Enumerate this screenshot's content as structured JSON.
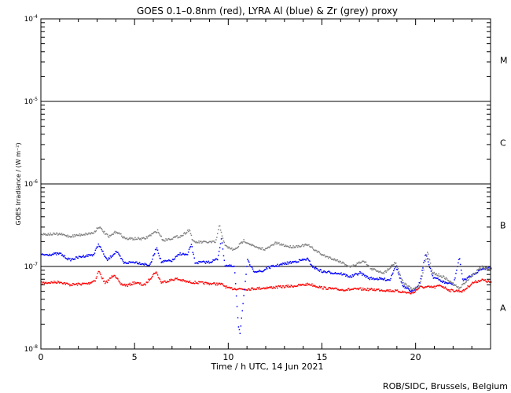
{
  "chart_data": {
    "type": "scatter",
    "title": "GOES 0.1–0.8nm (red), LYRA Al (blue) & Zr (grey) proxy",
    "xlabel": "Time / h UTC, 14 Jun 2021",
    "ylabel": "GOES Irradiance / (W m⁻²)",
    "xlim": [
      0,
      24
    ],
    "ylim": [
      1e-08,
      0.0001
    ],
    "yscale": "log",
    "x_ticks": [
      0,
      5,
      10,
      15,
      20
    ],
    "x_tick_labels": [
      "0",
      "5",
      "10",
      "15",
      "20"
    ],
    "y_tick_labels": [
      {
        "base": "10",
        "exp": "-8"
      },
      {
        "base": "10",
        "exp": "-7"
      },
      {
        "base": "10",
        "exp": "-6"
      },
      {
        "base": "10",
        "exp": "-5"
      },
      {
        "base": "10",
        "exp": "-4"
      }
    ],
    "flare_classes": [
      {
        "label": "A",
        "range": [
          1e-08,
          1e-07
        ]
      },
      {
        "label": "B",
        "range": [
          1e-07,
          1e-06
        ]
      },
      {
        "label": "C",
        "range": [
          1e-06,
          1e-05
        ]
      },
      {
        "label": "M",
        "range": [
          1e-05,
          0.0001
        ]
      }
    ],
    "threshold_lines": [
      1e-07,
      1e-06,
      1e-05
    ],
    "series": [
      {
        "name": "GOES 0.1-0.8nm",
        "color": "#ff0000",
        "points": [
          [
            0,
            6.4e-08
          ],
          [
            1,
            6.6e-08
          ],
          [
            1.5,
            6.1e-08
          ],
          [
            2.5,
            6.3e-08
          ],
          [
            2.9,
            7e-08
          ],
          [
            3.05,
            9e-08
          ],
          [
            3.4,
            6.3e-08
          ],
          [
            3.9,
            8.2e-08
          ],
          [
            4.2,
            6.2e-08
          ],
          [
            4.6,
            6e-08
          ],
          [
            5,
            6.5e-08
          ],
          [
            5.5,
            6e-08
          ],
          [
            6.1,
            8.8e-08
          ],
          [
            6.4,
            6.5e-08
          ],
          [
            7.2,
            7.2e-08
          ],
          [
            7.8,
            6.6e-08
          ],
          [
            9,
            6.3e-08
          ],
          [
            9.6,
            6.2e-08
          ],
          [
            10,
            5.5e-08
          ],
          [
            11,
            5.4e-08
          ],
          [
            12,
            5.6e-08
          ],
          [
            13.5,
            5.9e-08
          ],
          [
            14.3,
            6.2e-08
          ],
          [
            15,
            5.6e-08
          ],
          [
            16,
            5.3e-08
          ],
          [
            17,
            5.4e-08
          ],
          [
            18,
            5.3e-08
          ],
          [
            19,
            5.1e-08
          ],
          [
            19.8,
            4.8e-08
          ],
          [
            20.2,
            5.7e-08
          ],
          [
            21,
            5.7e-08
          ],
          [
            21.3,
            6e-08
          ],
          [
            21.8,
            5.2e-08
          ],
          [
            22.5,
            5.1e-08
          ],
          [
            23,
            6.4e-08
          ],
          [
            23.5,
            7e-08
          ],
          [
            24,
            6.5e-08
          ]
        ]
      },
      {
        "name": "LYRA Al proxy",
        "color": "#0000ff",
        "points": [
          [
            0,
            1.4e-07
          ],
          [
            1,
            1.45e-07
          ],
          [
            1.5,
            1.22e-07
          ],
          [
            2.2,
            1.35e-07
          ],
          [
            2.8,
            1.42e-07
          ],
          [
            3.05,
            1.9e-07
          ],
          [
            3.5,
            1.2e-07
          ],
          [
            4,
            1.55e-07
          ],
          [
            4.4,
            1.12e-07
          ],
          [
            5,
            1.15e-07
          ],
          [
            5.8,
            1.05e-07
          ],
          [
            6.15,
            1.75e-07
          ],
          [
            6.4,
            1.15e-07
          ],
          [
            7,
            1.2e-07
          ],
          [
            7.4,
            1.45e-07
          ],
          [
            7.8,
            1.4e-07
          ],
          [
            8,
            1.9e-07
          ],
          [
            8.2,
            1.13e-07
          ],
          [
            9,
            1.15e-07
          ],
          [
            9.4,
            1.25e-07
          ],
          [
            9.6,
            2.2e-07
          ],
          [
            9.8,
            1.05e-07
          ],
          [
            10.3,
            1e-07
          ],
          [
            10.5,
            2e-08
          ],
          [
            10.6,
            1.6e-08
          ],
          [
            10.75,
            3.5e-08
          ],
          [
            11,
            1.2e-07
          ],
          [
            11.3,
            9e-08
          ],
          [
            11.8,
            8.8e-08
          ],
          [
            12,
            9.7e-08
          ],
          [
            13,
            1.1e-07
          ],
          [
            14.2,
            1.25e-07
          ],
          [
            14.5,
            1e-07
          ],
          [
            15,
            8.8e-08
          ],
          [
            16,
            8.3e-08
          ],
          [
            16.5,
            7.6e-08
          ],
          [
            17,
            8.5e-08
          ],
          [
            17.5,
            7.3e-08
          ],
          [
            18,
            7.2e-08
          ],
          [
            18.6,
            7e-08
          ],
          [
            18.9,
            1.05e-07
          ],
          [
            19.3,
            5.8e-08
          ],
          [
            19.8,
            5e-08
          ],
          [
            20.2,
            6.5e-08
          ],
          [
            20.5,
            1.45e-07
          ],
          [
            20.9,
            7.6e-08
          ],
          [
            21.5,
            6.5e-08
          ],
          [
            22,
            6.2e-08
          ],
          [
            22.3,
            1.3e-07
          ],
          [
            22.5,
            6.8e-08
          ],
          [
            23,
            8e-08
          ],
          [
            23.5,
            9.5e-08
          ],
          [
            24,
            1e-07
          ]
        ]
      },
      {
        "name": "LYRA Zr proxy",
        "color": "#808080",
        "points": [
          [
            0,
            2.5e-07
          ],
          [
            1,
            2.5e-07
          ],
          [
            1.5,
            2.35e-07
          ],
          [
            2.8,
            2.6e-07
          ],
          [
            3.05,
            3.1e-07
          ],
          [
            3.6,
            2.3e-07
          ],
          [
            4,
            2.7e-07
          ],
          [
            4.5,
            2.2e-07
          ],
          [
            5.5,
            2.2e-07
          ],
          [
            6.2,
            2.75e-07
          ],
          [
            6.5,
            2.1e-07
          ],
          [
            7.5,
            2.4e-07
          ],
          [
            7.9,
            2.85e-07
          ],
          [
            8.1,
            2e-07
          ],
          [
            9.3,
            2e-07
          ],
          [
            9.5,
            3.2e-07
          ],
          [
            9.8,
            1.8e-07
          ],
          [
            10.3,
            1.6e-07
          ],
          [
            10.8,
            2.1e-07
          ],
          [
            11.5,
            1.7e-07
          ],
          [
            12,
            1.65e-07
          ],
          [
            12.5,
            1.95e-07
          ],
          [
            13.3,
            1.75e-07
          ],
          [
            14.2,
            1.85e-07
          ],
          [
            15,
            1.4e-07
          ],
          [
            16,
            1.15e-07
          ],
          [
            16.5,
            1e-07
          ],
          [
            17.2,
            1.2e-07
          ],
          [
            17.6,
            9.5e-08
          ],
          [
            18.3,
            8.5e-08
          ],
          [
            18.9,
            1.15e-07
          ],
          [
            19.3,
            6.5e-08
          ],
          [
            19.8,
            5.3e-08
          ],
          [
            20.2,
            6e-08
          ],
          [
            20.6,
            1.5e-07
          ],
          [
            20.9,
            8.5e-08
          ],
          [
            21.5,
            7.5e-08
          ],
          [
            22.3,
            5.5e-08
          ],
          [
            23,
            8e-08
          ],
          [
            23.5,
            1e-07
          ],
          [
            24,
            9.5e-08
          ]
        ]
      }
    ]
  },
  "credit": "ROB/SIDC, Brussels, Belgium"
}
